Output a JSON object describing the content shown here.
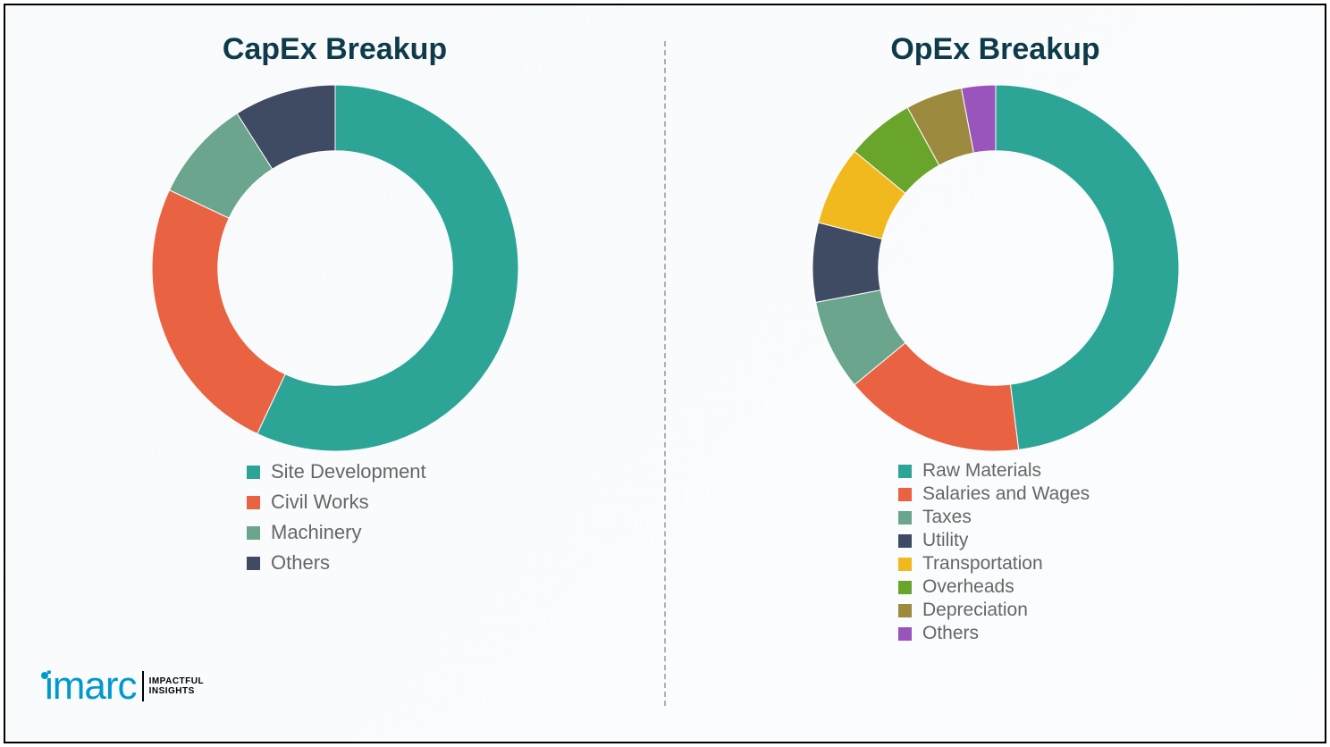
{
  "background_color": "#ffffff",
  "border_color": "#000000",
  "divider_color": "#b0b0b0",
  "title_color": "#0d3b4a",
  "legend_text_color": "#666666",
  "title_fontsize": 34,
  "legend_fontsize": 22,
  "logo": {
    "brand": "imarc",
    "brand_color": "#0099cc",
    "tagline_line1": "IMPACTFUL",
    "tagline_line2": "INSIGHTS",
    "tagline_color": "#000000"
  },
  "capex": {
    "type": "donut",
    "title": "CapEx Breakup",
    "inner_radius_ratio": 0.64,
    "outer_radius": 205,
    "background_color": "#ffffff",
    "slices": [
      {
        "label": "Site Development",
        "value": 57,
        "color": "#2ca597"
      },
      {
        "label": "Civil Works",
        "value": 25,
        "color": "#e96342"
      },
      {
        "label": "Machinery",
        "value": 9,
        "color": "#6ba58e"
      },
      {
        "label": "Others",
        "value": 9,
        "color": "#3f4a63"
      }
    ]
  },
  "opex": {
    "type": "donut",
    "title": "OpEx Breakup",
    "inner_radius_ratio": 0.64,
    "outer_radius": 205,
    "background_color": "#ffffff",
    "slices": [
      {
        "label": "Raw Materials",
        "value": 48,
        "color": "#2ca597"
      },
      {
        "label": "Salaries and Wages",
        "value": 16,
        "color": "#e96342"
      },
      {
        "label": "Taxes",
        "value": 8,
        "color": "#6ba58e"
      },
      {
        "label": "Utility",
        "value": 7,
        "color": "#3f4a63"
      },
      {
        "label": "Transportation",
        "value": 7,
        "color": "#f2b91f"
      },
      {
        "label": "Overheads",
        "value": 6,
        "color": "#6aa52b"
      },
      {
        "label": "Depreciation",
        "value": 5,
        "color": "#9c8b3f"
      },
      {
        "label": "Others",
        "value": 3,
        "color": "#9955bb"
      }
    ]
  }
}
